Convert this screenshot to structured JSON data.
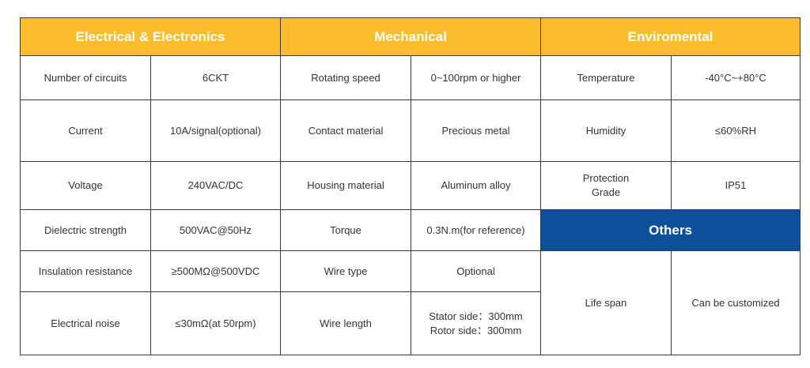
{
  "headers": {
    "electrical": "Electrical & Electronics",
    "mechanical": "Mechanical",
    "environmental": "Enviromental",
    "others": "Others"
  },
  "electrical": [
    {
      "label": "Number of circuits",
      "value": "6CKT"
    },
    {
      "label": "Current",
      "value": "10A/signal(optional)"
    },
    {
      "label": "Voltage",
      "value": "240VAC/DC"
    },
    {
      "label": "Dielectric strength",
      "value": "500VAC@50Hz"
    },
    {
      "label": "Insulation resistance",
      "value": "≥500MΩ@500VDC"
    },
    {
      "label": "Electrical noise",
      "value": "≤30mΩ(at 50rpm)"
    }
  ],
  "mechanical": [
    {
      "label": "Rotating speed",
      "value": "0~100rpm or higher"
    },
    {
      "label": "Contact material",
      "value": "Precious metal"
    },
    {
      "label": "Housing material",
      "value": "Aluminum alloy"
    },
    {
      "label": "Torque",
      "value": "0.3N.m(for reference)"
    },
    {
      "label": "Wire type",
      "value": "Optional"
    },
    {
      "label": "Wire length",
      "value_lines": [
        "Stator side：300mm",
        "Rotor side：300mm"
      ]
    }
  ],
  "environmental": [
    {
      "label": "Temperature",
      "value": "-40°C~+80°C"
    },
    {
      "label": "Humidity",
      "value": "≤60%RH"
    },
    {
      "label_lines": [
        "Protection",
        "Grade"
      ],
      "value": "IP51"
    }
  ],
  "others": [
    {
      "label": "Life span",
      "value": "Can be customized"
    }
  ],
  "colors": {
    "header_yellow": "#fbbd2d",
    "header_blue": "#0e4f9a",
    "border": "#3a3a3a",
    "text": "#333333"
  }
}
